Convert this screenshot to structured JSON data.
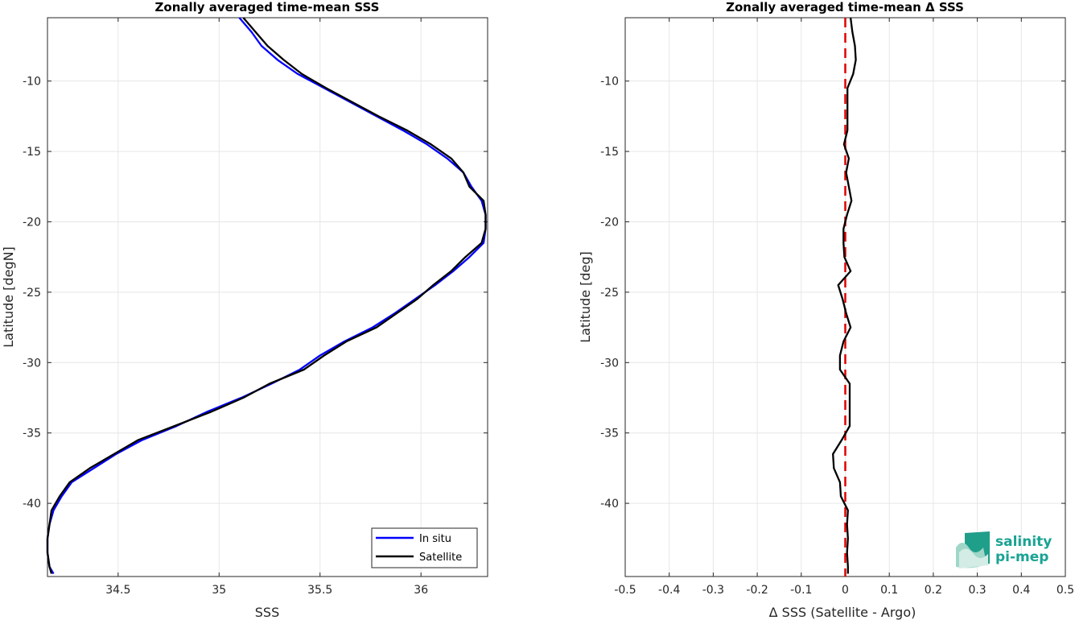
{
  "chart_data": [
    {
      "type": "line",
      "title": "Zonally averaged time-mean SSS",
      "xlabel": "SSS",
      "ylabel": "Latitude [degN]",
      "xlim": [
        34.15,
        36.33
      ],
      "ylim": [
        -45.2,
        -5.5
      ],
      "xticks": [
        34.5,
        35,
        35.5,
        36
      ],
      "xtick_labels": [
        "34.5",
        "35",
        "35.5",
        "36"
      ],
      "yticks": [
        -40,
        -35,
        -30,
        -25,
        -20,
        -15,
        -10
      ],
      "ytick_labels": [
        "-40",
        "-35",
        "-30",
        "-25",
        "-20",
        "-15",
        "-10"
      ],
      "grid": true,
      "legend_position": "bottom-right",
      "series": [
        {
          "name": "In situ",
          "color": "#0000ff",
          "lat": [
            -5.5,
            -6.5,
            -7.5,
            -8.5,
            -9.5,
            -10.5,
            -11.5,
            -12.5,
            -13.5,
            -14.5,
            -15.5,
            -16.5,
            -17.5,
            -18.5,
            -19.5,
            -20.5,
            -21.5,
            -22.5,
            -23.5,
            -24.5,
            -25.5,
            -26.5,
            -27.5,
            -28.5,
            -29.5,
            -30.5,
            -31.5,
            -32.5,
            -33.5,
            -34.5,
            -35.5,
            -36.5,
            -37.5,
            -38.5,
            -39.5,
            -40.5,
            -41.5,
            -42.5,
            -43.5,
            -44.5,
            -45.0
          ],
          "sss": [
            35.1,
            35.16,
            35.21,
            35.29,
            35.39,
            35.52,
            35.65,
            35.78,
            35.91,
            36.03,
            36.13,
            36.21,
            36.25,
            36.3,
            36.32,
            36.32,
            36.31,
            36.24,
            36.16,
            36.07,
            35.97,
            35.87,
            35.76,
            35.62,
            35.5,
            35.4,
            35.26,
            35.11,
            34.94,
            34.79,
            34.62,
            34.49,
            34.38,
            34.27,
            34.22,
            34.18,
            34.16,
            34.15,
            34.15,
            34.16,
            34.18
          ]
        },
        {
          "name": "Satellite",
          "color": "#000000",
          "lat": [
            -5.5,
            -6.5,
            -7.5,
            -8.5,
            -9.5,
            -10.5,
            -11.5,
            -12.5,
            -13.5,
            -14.5,
            -15.5,
            -16.5,
            -17.5,
            -18.5,
            -19.5,
            -20.5,
            -21.5,
            -22.5,
            -23.5,
            -24.5,
            -25.5,
            -26.5,
            -27.5,
            -28.5,
            -29.5,
            -30.5,
            -31.5,
            -32.5,
            -33.5,
            -34.5,
            -35.5,
            -36.5,
            -37.5,
            -38.5,
            -39.5,
            -40.5,
            -41.5,
            -42.5,
            -43.5,
            -44.5,
            -45.0
          ],
          "sss": [
            35.12,
            35.18,
            35.24,
            35.32,
            35.41,
            35.53,
            35.66,
            35.79,
            35.93,
            36.05,
            36.15,
            36.21,
            36.24,
            36.31,
            36.32,
            36.32,
            36.3,
            36.22,
            36.15,
            36.06,
            35.98,
            35.88,
            35.78,
            35.63,
            35.52,
            35.42,
            35.25,
            35.12,
            34.96,
            34.78,
            34.6,
            34.48,
            34.36,
            34.26,
            34.21,
            34.17,
            34.16,
            34.15,
            34.15,
            34.16,
            34.17
          ]
        }
      ]
    },
    {
      "type": "line",
      "title": "Zonally averaged time-mean Δ SSS",
      "xlabel": "Δ SSS (Satellite - Argo)",
      "ylabel": "Latitude [deg]",
      "xlim": [
        -0.5,
        0.5
      ],
      "ylim": [
        -45.2,
        -5.5
      ],
      "xticks": [
        -0.5,
        -0.4,
        -0.3,
        -0.2,
        -0.1,
        0,
        0.1,
        0.2,
        0.3,
        0.4,
        0.5
      ],
      "xtick_labels": [
        "-0.5",
        "-0.4",
        "-0.3",
        "-0.2",
        "-0.1",
        "0",
        "0.1",
        "0.2",
        "0.3",
        "0.4",
        "0.5"
      ],
      "yticks": [
        -40,
        -35,
        -30,
        -25,
        -20,
        -15,
        -10
      ],
      "ytick_labels": [
        "-40",
        "-35",
        "-30",
        "-25",
        "-20",
        "-15",
        "-10"
      ],
      "grid": true,
      "zero_line": {
        "x": 0,
        "color": "#e00000",
        "style": "dashed"
      },
      "series": [
        {
          "name": "",
          "color": "#000000",
          "lat": [
            -5.5,
            -6.5,
            -7.5,
            -8.5,
            -9.5,
            -10.5,
            -11.5,
            -12.5,
            -13.5,
            -14.5,
            -15.5,
            -16.5,
            -17.5,
            -18.5,
            -19.5,
            -20.5,
            -21.5,
            -22.5,
            -23.5,
            -24.5,
            -25.5,
            -26.5,
            -27.5,
            -28.5,
            -29.5,
            -30.5,
            -31.5,
            -32.5,
            -33.5,
            -34.5,
            -35.5,
            -36.5,
            -37.5,
            -38.5,
            -39.5,
            -40.5,
            -41.5,
            -42.5,
            -43.5,
            -44.5,
            -45.0
          ],
          "delta": [
            0.012,
            0.016,
            0.022,
            0.024,
            0.018,
            0.005,
            0.005,
            0.005,
            0.005,
            -0.003,
            0.008,
            0.002,
            0.008,
            0.014,
            0.004,
            -0.004,
            -0.004,
            -0.002,
            0.012,
            -0.016,
            -0.006,
            0.002,
            0.012,
            -0.004,
            -0.012,
            -0.012,
            0.01,
            0.01,
            0.01,
            0.01,
            -0.008,
            -0.028,
            -0.026,
            -0.012,
            -0.01,
            0.006,
            0.004,
            0.006,
            0.004,
            0.006,
            0.006
          ]
        }
      ]
    }
  ],
  "legend": {
    "in_situ_label": "In situ",
    "satellite_label": "Satellite"
  },
  "logo": {
    "line1": "salinity",
    "line2": "pi-mep"
  }
}
